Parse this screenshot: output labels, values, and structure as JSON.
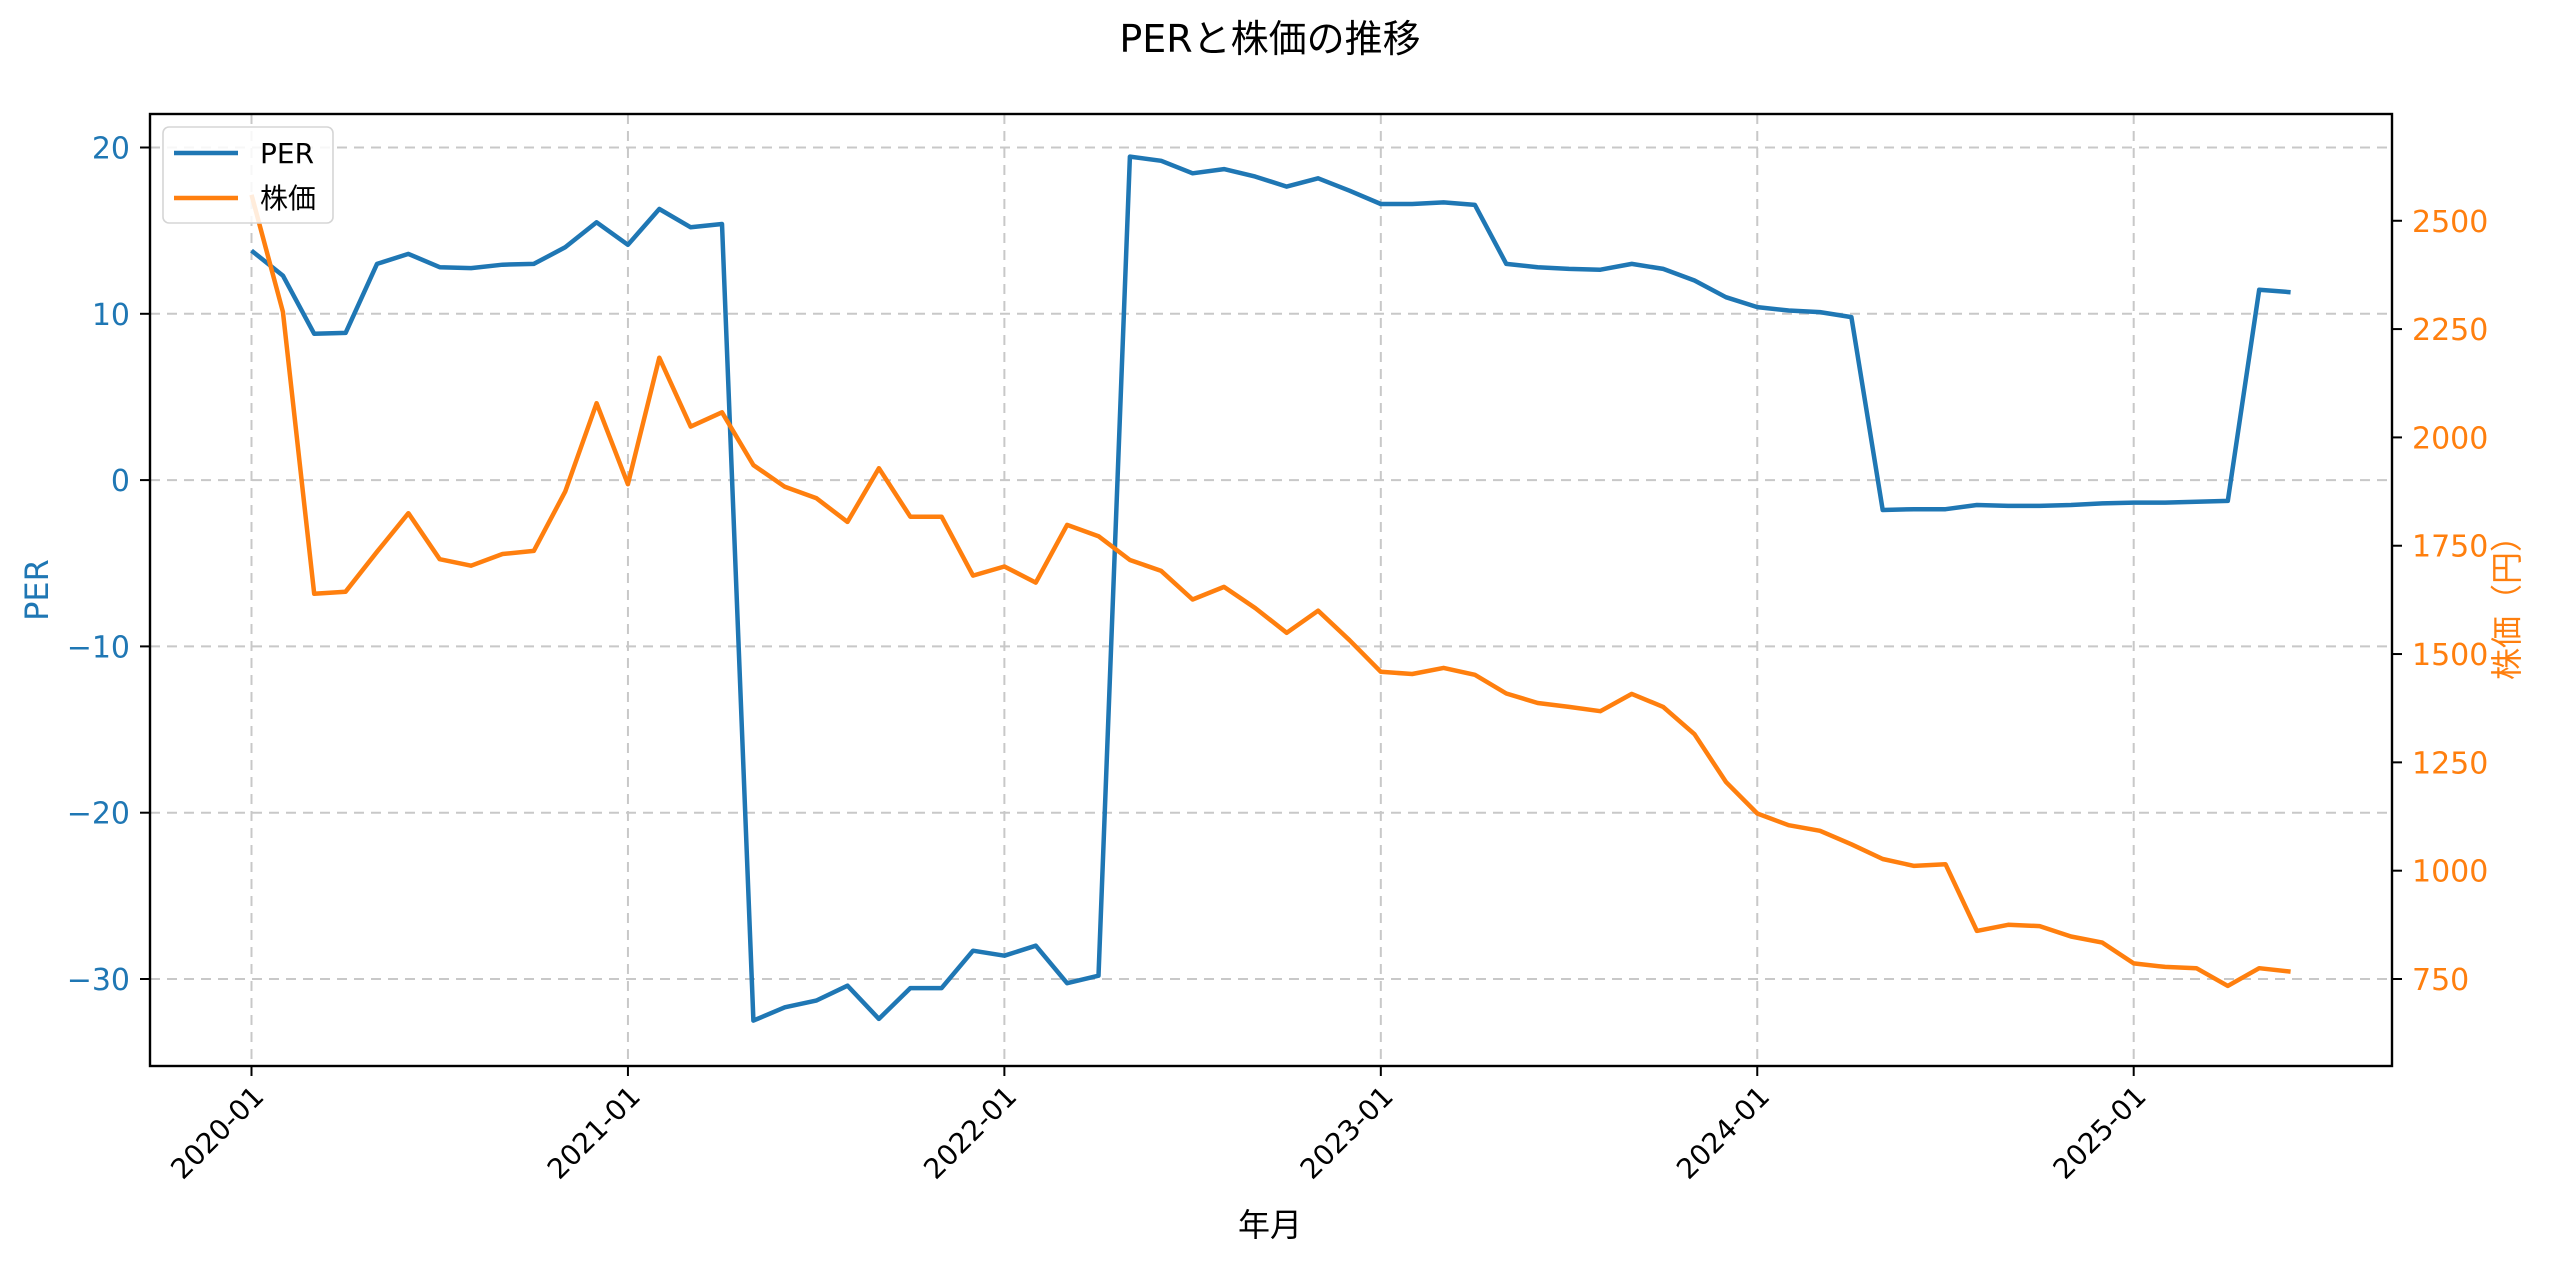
{
  "chart_data": {
    "type": "line",
    "title": "PERと株価の推移",
    "xlabel": "年月",
    "ylabel": "PER",
    "ylabel_right": "株価（円）",
    "x": [
      "2020-01",
      "2020-02",
      "2020-03",
      "2020-04",
      "2020-05",
      "2020-06",
      "2020-07",
      "2020-08",
      "2020-09",
      "2020-10",
      "2020-11",
      "2020-12",
      "2021-01",
      "2021-02",
      "2021-03",
      "2021-04",
      "2021-05",
      "2021-06",
      "2021-07",
      "2021-08",
      "2021-09",
      "2021-10",
      "2021-11",
      "2021-12",
      "2022-01",
      "2022-02",
      "2022-03",
      "2022-04",
      "2022-05",
      "2022-06",
      "2022-07",
      "2022-08",
      "2022-09",
      "2022-10",
      "2022-11",
      "2022-12",
      "2023-01",
      "2023-02",
      "2023-03",
      "2023-04",
      "2023-05",
      "2023-06",
      "2023-07",
      "2023-08",
      "2023-09",
      "2023-10",
      "2023-11",
      "2023-12",
      "2024-01",
      "2024-02",
      "2024-03",
      "2024-04",
      "2024-05",
      "2024-06",
      "2024-07",
      "2024-08",
      "2024-09",
      "2024-10",
      "2024-11",
      "2024-12",
      "2025-01",
      "2025-02",
      "2025-03",
      "2025-04",
      "2025-05",
      "2025-06"
    ],
    "series": [
      {
        "name": "PER",
        "axis": "left",
        "color": "#1f77b4",
        "values": [
          13.8,
          12.3,
          8.8,
          8.85,
          13.0,
          13.6,
          12.8,
          12.75,
          12.95,
          13.0,
          14.0,
          15.5,
          14.15,
          16.3,
          15.2,
          15.4,
          -32.5,
          -31.7,
          -31.3,
          -30.4,
          -32.4,
          -30.55,
          -30.55,
          -28.3,
          -28.6,
          -28.0,
          -30.25,
          -29.8,
          19.45,
          19.2,
          18.45,
          18.7,
          18.25,
          17.65,
          18.15,
          17.4,
          16.6,
          16.6,
          16.7,
          16.55,
          13.0,
          12.8,
          12.7,
          12.65,
          13.0,
          12.7,
          12.0,
          11.0,
          10.4,
          10.2,
          10.1,
          9.8,
          -1.8,
          -1.75,
          -1.75,
          -1.5,
          -1.55,
          -1.55,
          -1.5,
          -1.4,
          -1.35,
          -1.35,
          -1.3,
          -1.25,
          11.45,
          11.3
        ]
      },
      {
        "name": "株価",
        "axis": "right",
        "color": "#ff7f0e",
        "values": [
          2560,
          2290,
          1639,
          1644,
          1736,
          1825,
          1719,
          1704,
          1731,
          1738,
          1875,
          2079,
          1892,
          2184,
          2025,
          2058,
          1936,
          1886,
          1860,
          1805,
          1929,
          1817,
          1817,
          1681,
          1702,
          1665,
          1798,
          1772,
          1717,
          1692,
          1626,
          1655,
          1606,
          1549,
          1600,
          1532,
          1459,
          1454,
          1468,
          1452,
          1409,
          1387,
          1378,
          1368,
          1408,
          1378,
          1315,
          1205,
          1132,
          1105,
          1092,
          1061,
          1027,
          1011,
          1015,
          861,
          875,
          872,
          848,
          834,
          786,
          778,
          775,
          734,
          775,
          767
        ]
      }
    ],
    "left_axis": {
      "ticks": [
        20,
        10,
        0,
        -10,
        -20,
        -30
      ],
      "tick_labels": [
        "20",
        "10",
        "0",
        "−10",
        "−20",
        "−30"
      ],
      "ylim": [
        -35.3,
        22.1
      ],
      "color": "#1f77b4"
    },
    "right_axis": {
      "ticks": [
        2500,
        2250,
        2000,
        1750,
        1500,
        1250,
        1000,
        750
      ],
      "tick_labels": [
        "2500",
        "2250",
        "2000",
        "1750",
        "1500",
        "1250",
        "1000",
        "750"
      ],
      "ylim": [
        560,
        2775
      ],
      "color": "#ff7f0e"
    },
    "x_ticks": [
      "2020-01",
      "2021-01",
      "2022-01",
      "2023-01",
      "2024-01",
      "2025-01"
    ],
    "grid": true,
    "grid_style": "dashed",
    "legend": {
      "position": "upper left",
      "entries": [
        "PER",
        "株価"
      ]
    }
  }
}
